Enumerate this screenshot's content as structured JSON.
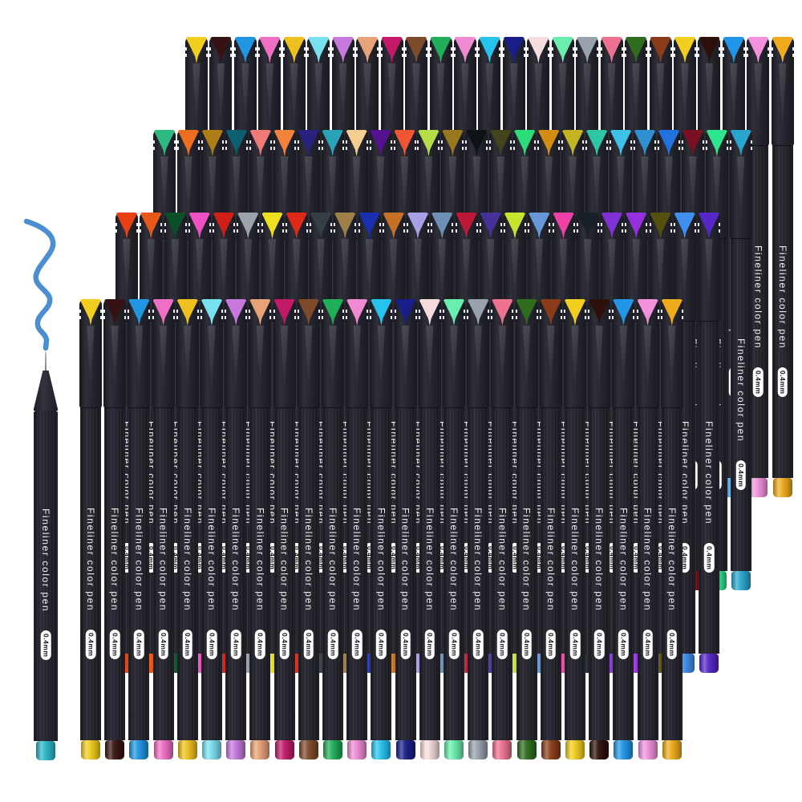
{
  "scene": {
    "type": "product-photo",
    "description": "Four staggered rows of black fineliner color pens with colored cap tips and colored end plugs, plus one uncapped pen that has drawn a blue wavy line",
    "background_color": "#ffffff",
    "pen_rows": 4,
    "pens_per_row": 25
  },
  "product": {
    "brand_text": "Fineliner color pen",
    "size_text": "0.4mm"
  },
  "palette": {
    "pen_black": "#26262e",
    "squiggle_blue": "#4b8fd0",
    "label_text": "#f2f2f5",
    "pill_bg": "#ffffff",
    "pill_text": "#15151a"
  },
  "demo_pen": {
    "state": "uncapped",
    "endcap_color": "#29b9c8"
  },
  "rows": [
    {
      "name": "pen-row-1",
      "pen_colors": [
        "#f2ce1e",
        "#361312",
        "#2095e2",
        "#ef6fc5",
        "#eec11e",
        "#79e0ef",
        "#c678dc",
        "#e8a277",
        "#c21a68",
        "#7d4a2a",
        "#21ae58",
        "#ef8ad3",
        "#27c3ef",
        "#181d87",
        "#f6dcdc",
        "#69eead",
        "#99a1ad",
        "#ee7190",
        "#2f6c1d",
        "#8a3c18",
        "#f2ce1e",
        "#2e100b",
        "#2196e8",
        "#f292dd",
        "#f0ab1d"
      ]
    },
    {
      "name": "pen-row-2",
      "pen_colors": [
        "#2eb97e",
        "#ee6e1f",
        "#ad7d16",
        "#0c5f6e",
        "#f07a78",
        "#f3823c",
        "#292180",
        "#28a3b8",
        "#f5cf92",
        "#571092",
        "#f25531",
        "#b5dd4a",
        "#97781c",
        "#0e1116",
        "#43431c",
        "#2cdc78",
        "#d28d12",
        "#c4b421",
        "#2fc6a6",
        "#3fc0e8",
        "#2f8fd0",
        "#2272de",
        "#7c1022",
        "#2ee68e",
        "#2aa6ce"
      ]
    },
    {
      "name": "pen-row-3",
      "pen_colors": [
        "#e84012",
        "#e85818",
        "#0a4f28",
        "#ee52c2",
        "#cf1f18",
        "#9aa2aa",
        "#eedf1f",
        "#df2a18",
        "#353e46",
        "#9f7f48",
        "#1830ae",
        "#c67026",
        "#a8a0e6",
        "#6f90b6",
        "#bd1838",
        "#46309a",
        "#c6e62e",
        "#6697d6",
        "#ef40a8",
        "#171f28",
        "#7f30d6",
        "#9630de",
        "#56500e",
        "#3f8fee",
        "#5626c6"
      ]
    },
    {
      "name": "pen-row-4",
      "pen_colors": [
        "#f2ce1e",
        "#361312",
        "#2095e2",
        "#ef6fc5",
        "#eec11e",
        "#79e0ef",
        "#c678dc",
        "#e8a277",
        "#c21a68",
        "#7d4a2a",
        "#21ae58",
        "#ef8ad3",
        "#27c3ef",
        "#181d87",
        "#f6dcdc",
        "#69eead",
        "#99a1ad",
        "#ee7190",
        "#2f6c1d",
        "#8a3c18",
        "#f2ce1e",
        "#2e100b",
        "#2196e8",
        "#f292dd",
        "#f0ab1d"
      ]
    }
  ]
}
